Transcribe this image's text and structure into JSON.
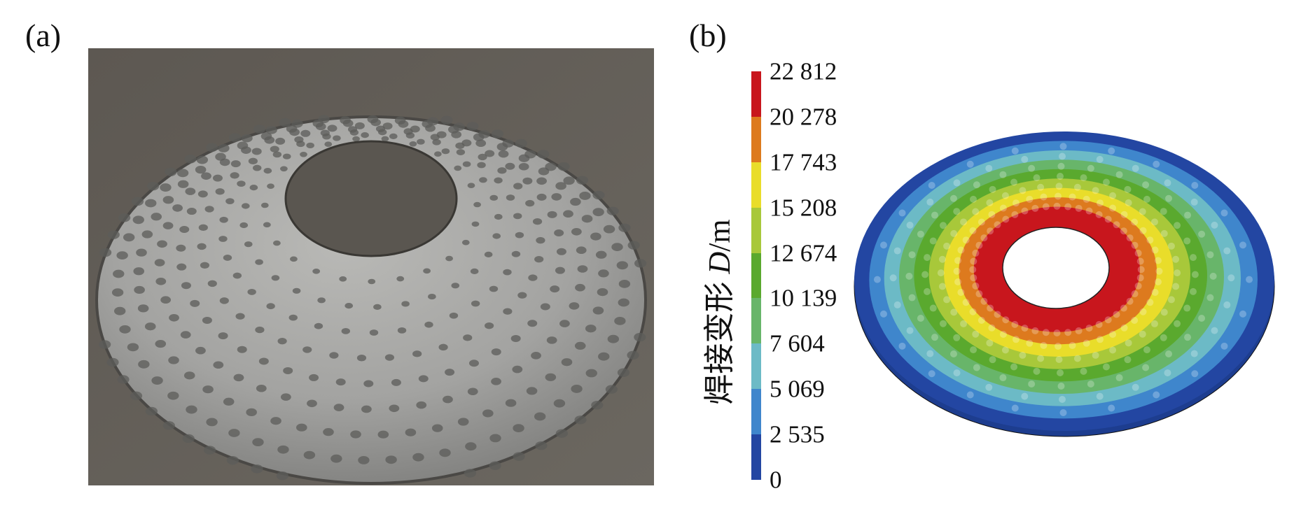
{
  "panels": {
    "a": {
      "label": "(a)"
    },
    "b": {
      "label": "(b)"
    }
  },
  "colorbar": {
    "title_cn": "焊接变形",
    "title_symbol": "D",
    "title_unit": "/m",
    "ticks": [
      "22 812",
      "20 278",
      "17 743",
      "15 208",
      "12 674",
      "10 139",
      "7 604",
      "5 069",
      "2 535",
      "0"
    ],
    "colors": [
      "#c8161d",
      "#dd7a1e",
      "#e9dd2a",
      "#a8c83a",
      "#5aa92e",
      "#68b56a",
      "#6cbac6",
      "#3f86cc",
      "#2346a2"
    ]
  }
}
